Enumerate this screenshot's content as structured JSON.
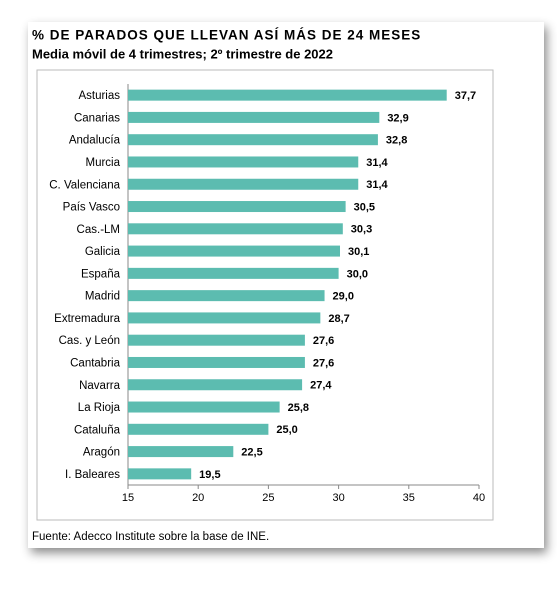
{
  "chart_data": {
    "type": "bar",
    "orientation": "horizontal",
    "title": "% DE PARADOS QUE LLEVAN ASÍ MÁS DE 24 MESES",
    "subtitle": "Media móvil de 4 trimestres; 2º trimestre de 2022",
    "source": "Fuente: Adecco Institute sobre la base de INE.",
    "categories": [
      "Asturias",
      "Canarias",
      "Andalucía",
      "Murcia",
      "C. Valenciana",
      "País Vasco",
      "Cas.-LM",
      "Galicia",
      "España",
      "Madrid",
      "Extremadura",
      "Cas. y León",
      "Cantabria",
      "Navarra",
      "La Rioja",
      "Cataluña",
      "Aragón",
      "I. Baleares"
    ],
    "values": [
      37.7,
      32.9,
      32.8,
      31.4,
      31.4,
      30.5,
      30.3,
      30.1,
      30.0,
      29.0,
      28.7,
      27.6,
      27.6,
      27.4,
      25.8,
      25.0,
      22.5,
      19.5
    ],
    "value_labels": [
      "37,7",
      "32,9",
      "32,8",
      "31,4",
      "31,4",
      "30,5",
      "30,3",
      "30,1",
      "30,0",
      "29,0",
      "28,7",
      "27,6",
      "27,6",
      "27,4",
      "25,8",
      "25,0",
      "22,5",
      "19,5"
    ],
    "color": "#5cbcb0",
    "xlim": [
      15,
      40
    ],
    "xticks": [
      15,
      20,
      25,
      30,
      35,
      40
    ],
    "grid": false
  }
}
